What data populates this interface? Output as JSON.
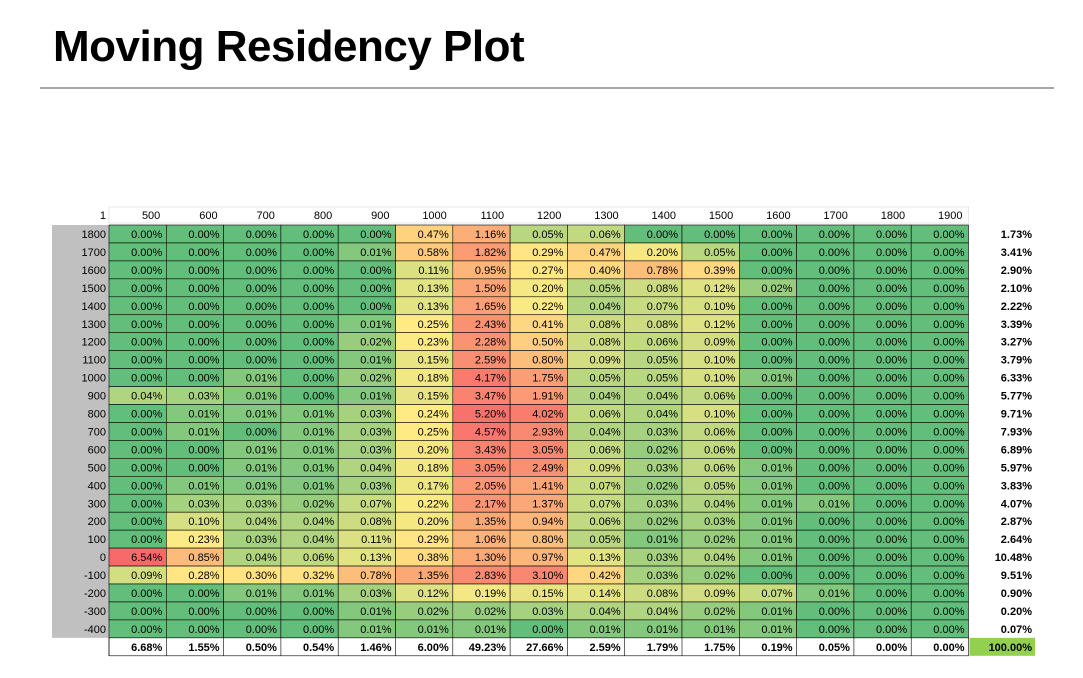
{
  "page": {
    "title": "Moving Residency Plot"
  },
  "chart_data": {
    "type": "heatmap",
    "title": "Moving Residency Plot",
    "corner_label": "1",
    "columns": [
      "500",
      "600",
      "700",
      "800",
      "900",
      "1000",
      "1100",
      "1200",
      "1300",
      "1400",
      "1500",
      "1600",
      "1700",
      "1800",
      "1900"
    ],
    "rows": [
      {
        "label": "1800",
        "values": [
          "0.00%",
          "0.00%",
          "0.00%",
          "0.00%",
          "0.00%",
          "0.47%",
          "1.16%",
          "0.05%",
          "0.06%",
          "0.00%",
          "0.00%",
          "0.00%",
          "0.00%",
          "0.00%",
          "0.00%"
        ],
        "total": "1.73%"
      },
      {
        "label": "1700",
        "values": [
          "0.00%",
          "0.00%",
          "0.00%",
          "0.00%",
          "0.01%",
          "0.58%",
          "1.82%",
          "0.29%",
          "0.47%",
          "0.20%",
          "0.05%",
          "0.00%",
          "0.00%",
          "0.00%",
          "0.00%"
        ],
        "total": "3.41%"
      },
      {
        "label": "1600",
        "values": [
          "0.00%",
          "0.00%",
          "0.00%",
          "0.00%",
          "0.00%",
          "0.11%",
          "0.95%",
          "0.27%",
          "0.40%",
          "0.78%",
          "0.39%",
          "0.00%",
          "0.00%",
          "0.00%",
          "0.00%"
        ],
        "total": "2.90%"
      },
      {
        "label": "1500",
        "values": [
          "0.00%",
          "0.00%",
          "0.00%",
          "0.00%",
          "0.00%",
          "0.13%",
          "1.50%",
          "0.20%",
          "0.05%",
          "0.08%",
          "0.12%",
          "0.02%",
          "0.00%",
          "0.00%",
          "0.00%"
        ],
        "total": "2.10%"
      },
      {
        "label": "1400",
        "values": [
          "0.00%",
          "0.00%",
          "0.00%",
          "0.00%",
          "0.00%",
          "0.13%",
          "1.65%",
          "0.22%",
          "0.04%",
          "0.07%",
          "0.10%",
          "0.00%",
          "0.00%",
          "0.00%",
          "0.00%"
        ],
        "total": "2.22%"
      },
      {
        "label": "1300",
        "values": [
          "0.00%",
          "0.00%",
          "0.00%",
          "0.00%",
          "0.01%",
          "0.25%",
          "2.43%",
          "0.41%",
          "0.08%",
          "0.08%",
          "0.12%",
          "0.00%",
          "0.00%",
          "0.00%",
          "0.00%"
        ],
        "total": "3.39%"
      },
      {
        "label": "1200",
        "values": [
          "0.00%",
          "0.00%",
          "0.00%",
          "0.00%",
          "0.02%",
          "0.23%",
          "2.28%",
          "0.50%",
          "0.08%",
          "0.06%",
          "0.09%",
          "0.00%",
          "0.00%",
          "0.00%",
          "0.00%"
        ],
        "total": "3.27%"
      },
      {
        "label": "1100",
        "values": [
          "0.00%",
          "0.00%",
          "0.00%",
          "0.00%",
          "0.01%",
          "0.15%",
          "2.59%",
          "0.80%",
          "0.09%",
          "0.05%",
          "0.10%",
          "0.00%",
          "0.00%",
          "0.00%",
          "0.00%"
        ],
        "total": "3.79%"
      },
      {
        "label": "1000",
        "values": [
          "0.00%",
          "0.00%",
          "0.01%",
          "0.00%",
          "0.02%",
          "0.18%",
          "4.17%",
          "1.75%",
          "0.05%",
          "0.05%",
          "0.10%",
          "0.01%",
          "0.00%",
          "0.00%",
          "0.00%"
        ],
        "total": "6.33%"
      },
      {
        "label": "900",
        "values": [
          "0.04%",
          "0.03%",
          "0.01%",
          "0.00%",
          "0.01%",
          "0.15%",
          "3.47%",
          "1.91%",
          "0.04%",
          "0.04%",
          "0.06%",
          "0.00%",
          "0.00%",
          "0.00%",
          "0.00%"
        ],
        "total": "5.77%"
      },
      {
        "label": "800",
        "values": [
          "0.00%",
          "0.01%",
          "0.01%",
          "0.01%",
          "0.03%",
          "0.24%",
          "5.20%",
          "4.02%",
          "0.06%",
          "0.04%",
          "0.10%",
          "0.00%",
          "0.00%",
          "0.00%",
          "0.00%"
        ],
        "total": "9.71%"
      },
      {
        "label": "700",
        "values": [
          "0.00%",
          "0.01%",
          "0.00%",
          "0.01%",
          "0.03%",
          "0.25%",
          "4.57%",
          "2.93%",
          "0.04%",
          "0.03%",
          "0.06%",
          "0.00%",
          "0.00%",
          "0.00%",
          "0.00%"
        ],
        "total": "7.93%"
      },
      {
        "label": "600",
        "values": [
          "0.00%",
          "0.00%",
          "0.01%",
          "0.01%",
          "0.03%",
          "0.20%",
          "3.43%",
          "3.05%",
          "0.06%",
          "0.02%",
          "0.06%",
          "0.00%",
          "0.00%",
          "0.00%",
          "0.00%"
        ],
        "total": "6.89%"
      },
      {
        "label": "500",
        "values": [
          "0.00%",
          "0.00%",
          "0.01%",
          "0.01%",
          "0.04%",
          "0.18%",
          "3.05%",
          "2.49%",
          "0.09%",
          "0.03%",
          "0.06%",
          "0.01%",
          "0.00%",
          "0.00%",
          "0.00%"
        ],
        "total": "5.97%"
      },
      {
        "label": "400",
        "values": [
          "0.00%",
          "0.01%",
          "0.01%",
          "0.01%",
          "0.03%",
          "0.17%",
          "2.05%",
          "1.41%",
          "0.07%",
          "0.02%",
          "0.05%",
          "0.01%",
          "0.00%",
          "0.00%",
          "0.00%"
        ],
        "total": "3.83%"
      },
      {
        "label": "300",
        "values": [
          "0.00%",
          "0.03%",
          "0.03%",
          "0.02%",
          "0.07%",
          "0.22%",
          "2.17%",
          "1.37%",
          "0.07%",
          "0.03%",
          "0.04%",
          "0.01%",
          "0.01%",
          "0.00%",
          "0.00%"
        ],
        "total": "4.07%"
      },
      {
        "label": "200",
        "values": [
          "0.00%",
          "0.10%",
          "0.04%",
          "0.04%",
          "0.08%",
          "0.20%",
          "1.35%",
          "0.94%",
          "0.06%",
          "0.02%",
          "0.03%",
          "0.01%",
          "0.00%",
          "0.00%",
          "0.00%"
        ],
        "total": "2.87%"
      },
      {
        "label": "100",
        "values": [
          "0.00%",
          "0.23%",
          "0.03%",
          "0.04%",
          "0.11%",
          "0.29%",
          "1.06%",
          "0.80%",
          "0.05%",
          "0.01%",
          "0.02%",
          "0.01%",
          "0.00%",
          "0.00%",
          "0.00%"
        ],
        "total": "2.64%"
      },
      {
        "label": "0",
        "values": [
          "6.54%",
          "0.85%",
          "0.04%",
          "0.06%",
          "0.13%",
          "0.38%",
          "1.30%",
          "0.97%",
          "0.13%",
          "0.03%",
          "0.04%",
          "0.01%",
          "0.00%",
          "0.00%",
          "0.00%"
        ],
        "total": "10.48%"
      },
      {
        "label": "-100",
        "values": [
          "0.09%",
          "0.28%",
          "0.30%",
          "0.32%",
          "0.78%",
          "1.35%",
          "2.83%",
          "3.10%",
          "0.42%",
          "0.03%",
          "0.02%",
          "0.00%",
          "0.00%",
          "0.00%",
          "0.00%"
        ],
        "total": "9.51%"
      },
      {
        "label": "-200",
        "values": [
          "0.00%",
          "0.00%",
          "0.01%",
          "0.01%",
          "0.03%",
          "0.12%",
          "0.19%",
          "0.15%",
          "0.14%",
          "0.08%",
          "0.09%",
          "0.07%",
          "0.01%",
          "0.00%",
          "0.00%"
        ],
        "total": "0.90%"
      },
      {
        "label": "-300",
        "values": [
          "0.00%",
          "0.00%",
          "0.00%",
          "0.00%",
          "0.01%",
          "0.02%",
          "0.02%",
          "0.03%",
          "0.04%",
          "0.04%",
          "0.02%",
          "0.01%",
          "0.00%",
          "0.00%",
          "0.00%"
        ],
        "total": "0.20%"
      },
      {
        "label": "-400",
        "values": [
          "0.00%",
          "0.00%",
          "0.00%",
          "0.00%",
          "0.01%",
          "0.01%",
          "0.01%",
          "0.00%",
          "0.01%",
          "0.01%",
          "0.01%",
          "0.01%",
          "0.00%",
          "0.00%",
          "0.00%"
        ],
        "total": "0.07%"
      }
    ],
    "column_totals": [
      "6.68%",
      "1.55%",
      "0.50%",
      "0.54%",
      "1.46%",
      "6.00%",
      "49.23%",
      "27.66%",
      "2.59%",
      "1.79%",
      "1.75%",
      "0.19%",
      "0.05%",
      "0.00%",
      "0.00%"
    ],
    "grand_total": "100.00%"
  },
  "colors": {
    "green": "#63be7b",
    "light_green": "#b5d67f",
    "yellow": "#ffeb84",
    "orange": "#fbbe7b",
    "salmon": "#f9a073",
    "red": "#f8696b",
    "label_bg": "#c0c0c0",
    "grand_total_bg": "#92d050",
    "grid": "#000000"
  }
}
